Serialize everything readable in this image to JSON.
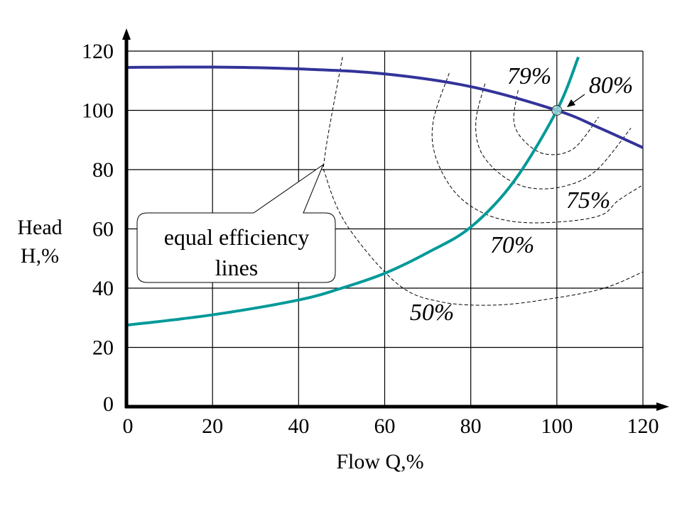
{
  "chart_data": {
    "type": "line",
    "title": "",
    "xlabel": "Flow Q,%",
    "ylabel": [
      "Head",
      "H,%"
    ],
    "xlim": [
      0,
      120
    ],
    "ylim": [
      0,
      120
    ],
    "xticks": [
      "0",
      "20",
      "40",
      "60",
      "80",
      "100",
      "120"
    ],
    "yticks": [
      "0",
      "20",
      "40",
      "60",
      "80",
      "100",
      "120"
    ],
    "grid": true,
    "series": [
      {
        "kind": "pump-head-curve",
        "color": "#33339a",
        "x": [
          0,
          20,
          40,
          60,
          80,
          100,
          110,
          120
        ],
        "y": [
          114.5,
          114.6,
          114,
          112.3,
          108,
          100,
          94,
          87.4
        ]
      },
      {
        "kind": "system-curve",
        "color": "#009999",
        "x": [
          0,
          20,
          40,
          50,
          60,
          70,
          80,
          90,
          100,
          105
        ],
        "y": [
          27.5,
          31,
          36,
          40,
          45,
          52,
          60.6,
          76,
          100,
          118
        ]
      }
    ],
    "efficiency_lines": [
      {
        "label": "50%",
        "x": [
          50.2,
          46.2,
          46.5,
          51.5,
          63,
          73,
          86,
          99.3,
          111,
          120
        ],
        "y": [
          118,
          85.7,
          77,
          60.6,
          41.4,
          35.4,
          34.3,
          36.6,
          40,
          45.5
        ]
      },
      {
        "label": "70%",
        "x": [
          75,
          71.3,
          71.8,
          76.2,
          82.8,
          91,
          102,
          110.4,
          114.2,
          119.6
        ],
        "y": [
          112.6,
          96.5,
          84.5,
          72.6,
          65.4,
          62.3,
          62.5,
          64.7,
          69.5,
          74.5
        ]
      },
      {
        "label": "75%",
        "x": [
          83.3,
          81.2,
          82.3,
          87.3,
          93.9,
          102,
          109.2,
          117.2
        ],
        "y": [
          109,
          96.5,
          86.2,
          78,
          73.8,
          74.5,
          79.8,
          94
        ]
      },
      {
        "label": "79%",
        "x": [
          91,
          90,
          92.2,
          97.2,
          103.8,
          109.7
        ],
        "y": [
          106.8,
          96.5,
          90,
          85.3,
          87,
          97.7
        ]
      }
    ],
    "best_efficiency_point": {
      "label": "80%",
      "x": 100,
      "y": 100,
      "color": "#9fd8d8"
    },
    "callout": {
      "lines": [
        "equal efficiency",
        "lines"
      ]
    }
  }
}
